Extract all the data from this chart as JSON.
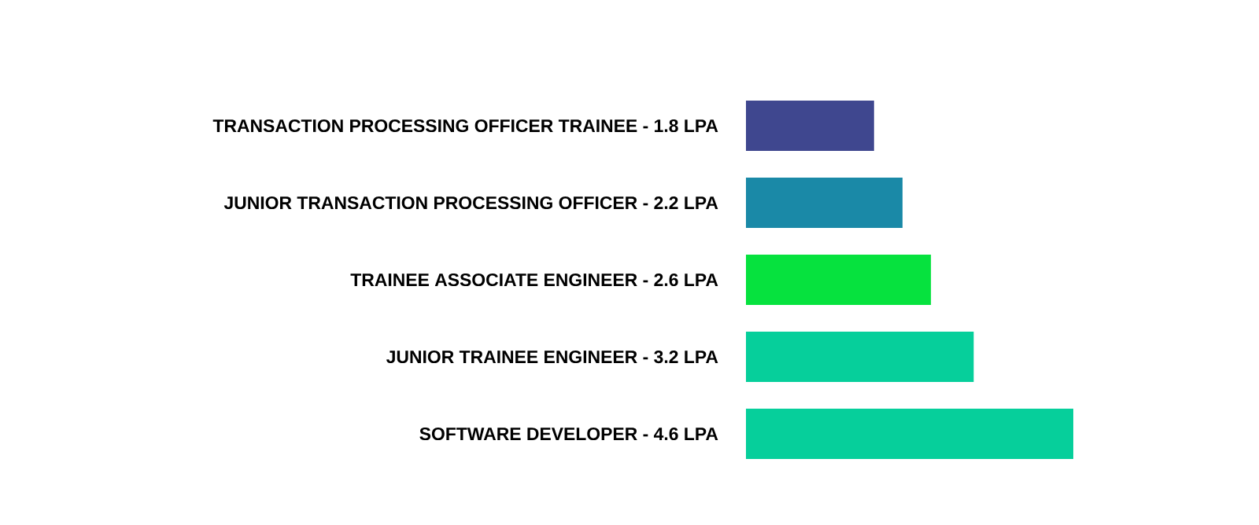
{
  "chart_data": {
    "type": "bar",
    "orientation": "horizontal",
    "categories": [
      "TRANSACTION PROCESSING OFFICER TRAINEE -",
      "JUNIOR TRANSACTION PROCESSING OFFICER -",
      "TRAINEE ASSOCIATE ENGINEER -",
      "JUNIOR TRAINEE ENGINEER -",
      "SOFTWARE DEVELOPER -"
    ],
    "values": [
      1.8,
      2.2,
      2.6,
      3.2,
      4.6
    ],
    "value_labels": [
      "1.8 LPA",
      "2.2 LPA",
      "2.6 LPA",
      "3.2 LPA",
      "4.6 LPA"
    ],
    "colors": [
      "#3f478f",
      "#1a89a7",
      "#06e23e",
      "#06cf9b",
      "#06cf9b"
    ],
    "tick_labels": "y"
  }
}
